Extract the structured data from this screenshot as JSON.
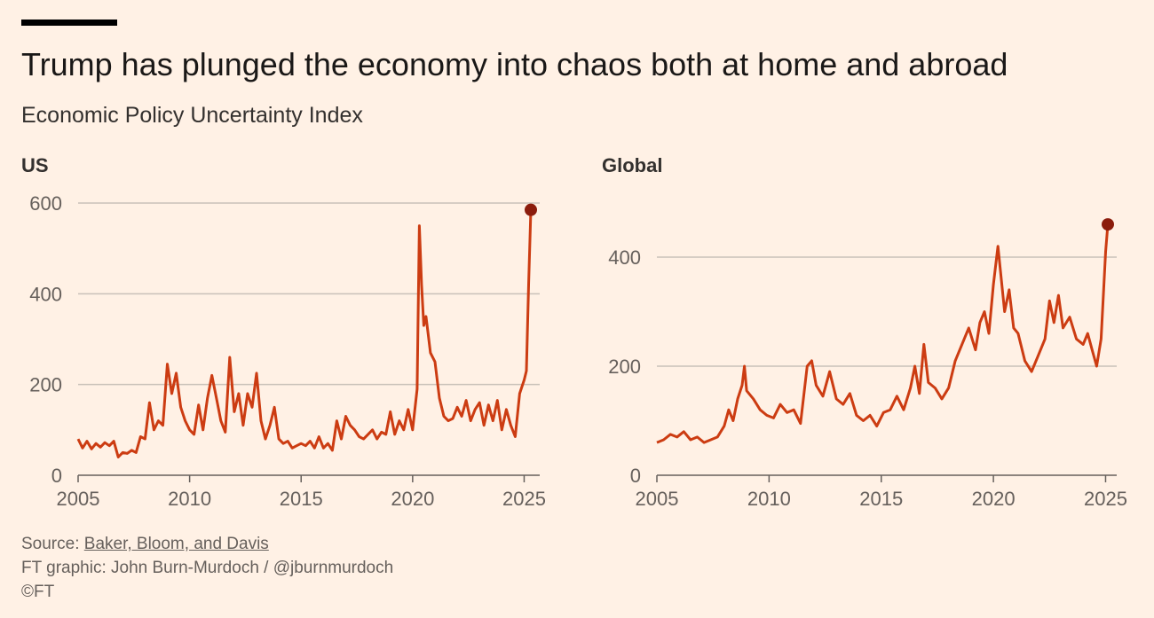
{
  "title": "Trump has plunged the economy into chaos both at home and abroad",
  "subtitle": "Economic Policy Uncertainty Index",
  "colors": {
    "background": "#fff1e5",
    "line": "#cc3c12",
    "marker": "#8b1c0c",
    "grid": "#c9c1b9"
  },
  "chart_data": [
    {
      "type": "line",
      "panel_title": "US",
      "x_range": [
        2005,
        2025.3
      ],
      "ylim": [
        0,
        600
      ],
      "y_ticks": [
        0,
        200,
        400,
        600
      ],
      "x_ticks": [
        2005,
        2010,
        2015,
        2020,
        2025
      ],
      "grid": true,
      "series": [
        {
          "points": [
            [
              2005.0,
              80
            ],
            [
              2005.2,
              60
            ],
            [
              2005.4,
              75
            ],
            [
              2005.6,
              58
            ],
            [
              2005.8,
              70
            ],
            [
              2006.0,
              62
            ],
            [
              2006.2,
              72
            ],
            [
              2006.4,
              65
            ],
            [
              2006.6,
              75
            ],
            [
              2006.8,
              40
            ],
            [
              2007.0,
              50
            ],
            [
              2007.2,
              48
            ],
            [
              2007.4,
              55
            ],
            [
              2007.6,
              50
            ],
            [
              2007.8,
              85
            ],
            [
              2008.0,
              80
            ],
            [
              2008.2,
              160
            ],
            [
              2008.4,
              100
            ],
            [
              2008.6,
              120
            ],
            [
              2008.8,
              110
            ],
            [
              2009.0,
              245
            ],
            [
              2009.2,
              180
            ],
            [
              2009.4,
              225
            ],
            [
              2009.6,
              150
            ],
            [
              2009.8,
              120
            ],
            [
              2010.0,
              100
            ],
            [
              2010.2,
              90
            ],
            [
              2010.4,
              155
            ],
            [
              2010.6,
              100
            ],
            [
              2010.8,
              170
            ],
            [
              2011.0,
              220
            ],
            [
              2011.2,
              170
            ],
            [
              2011.4,
              120
            ],
            [
              2011.6,
              95
            ],
            [
              2011.8,
              260
            ],
            [
              2012.0,
              140
            ],
            [
              2012.2,
              180
            ],
            [
              2012.4,
              110
            ],
            [
              2012.6,
              180
            ],
            [
              2012.8,
              150
            ],
            [
              2013.0,
              225
            ],
            [
              2013.2,
              120
            ],
            [
              2013.4,
              80
            ],
            [
              2013.6,
              110
            ],
            [
              2013.8,
              150
            ],
            [
              2014.0,
              80
            ],
            [
              2014.2,
              70
            ],
            [
              2014.4,
              75
            ],
            [
              2014.6,
              60
            ],
            [
              2014.8,
              65
            ],
            [
              2015.0,
              70
            ],
            [
              2015.2,
              65
            ],
            [
              2015.4,
              75
            ],
            [
              2015.6,
              60
            ],
            [
              2015.8,
              85
            ],
            [
              2016.0,
              60
            ],
            [
              2016.2,
              70
            ],
            [
              2016.4,
              55
            ],
            [
              2016.6,
              120
            ],
            [
              2016.8,
              80
            ],
            [
              2017.0,
              130
            ],
            [
              2017.2,
              110
            ],
            [
              2017.4,
              100
            ],
            [
              2017.6,
              85
            ],
            [
              2017.8,
              80
            ],
            [
              2018.0,
              90
            ],
            [
              2018.2,
              100
            ],
            [
              2018.4,
              80
            ],
            [
              2018.6,
              95
            ],
            [
              2018.8,
              90
            ],
            [
              2019.0,
              140
            ],
            [
              2019.2,
              90
            ],
            [
              2019.4,
              120
            ],
            [
              2019.6,
              100
            ],
            [
              2019.8,
              145
            ],
            [
              2020.0,
              100
            ],
            [
              2020.2,
              190
            ],
            [
              2020.3,
              550
            ],
            [
              2020.4,
              420
            ],
            [
              2020.5,
              330
            ],
            [
              2020.6,
              350
            ],
            [
              2020.8,
              270
            ],
            [
              2021.0,
              250
            ],
            [
              2021.2,
              170
            ],
            [
              2021.4,
              130
            ],
            [
              2021.6,
              120
            ],
            [
              2021.8,
              125
            ],
            [
              2022.0,
              150
            ],
            [
              2022.2,
              130
            ],
            [
              2022.4,
              165
            ],
            [
              2022.6,
              120
            ],
            [
              2022.8,
              145
            ],
            [
              2023.0,
              160
            ],
            [
              2023.2,
              110
            ],
            [
              2023.4,
              155
            ],
            [
              2023.6,
              120
            ],
            [
              2023.8,
              165
            ],
            [
              2024.0,
              100
            ],
            [
              2024.2,
              145
            ],
            [
              2024.4,
              110
            ],
            [
              2024.6,
              85
            ],
            [
              2024.8,
              180
            ],
            [
              2025.0,
              210
            ],
            [
              2025.1,
              230
            ],
            [
              2025.2,
              420
            ],
            [
              2025.3,
              585
            ]
          ]
        }
      ],
      "highlight_point": [
        2025.3,
        585
      ]
    },
    {
      "type": "line",
      "panel_title": "Global",
      "x_range": [
        2005,
        2025.1
      ],
      "ylim": [
        0,
        500
      ],
      "y_ticks": [
        0,
        200,
        400
      ],
      "x_ticks": [
        2005,
        2010,
        2015,
        2020,
        2025
      ],
      "grid": true,
      "series": [
        {
          "points": [
            [
              2005.0,
              60
            ],
            [
              2005.3,
              65
            ],
            [
              2005.6,
              75
            ],
            [
              2005.9,
              70
            ],
            [
              2006.2,
              80
            ],
            [
              2006.5,
              65
            ],
            [
              2006.8,
              70
            ],
            [
              2007.1,
              60
            ],
            [
              2007.4,
              65
            ],
            [
              2007.7,
              70
            ],
            [
              2008.0,
              90
            ],
            [
              2008.2,
              120
            ],
            [
              2008.4,
              100
            ],
            [
              2008.6,
              140
            ],
            [
              2008.8,
              165
            ],
            [
              2008.9,
              200
            ],
            [
              2009.0,
              155
            ],
            [
              2009.3,
              140
            ],
            [
              2009.6,
              120
            ],
            [
              2009.9,
              110
            ],
            [
              2010.2,
              105
            ],
            [
              2010.5,
              130
            ],
            [
              2010.8,
              115
            ],
            [
              2011.1,
              120
            ],
            [
              2011.4,
              95
            ],
            [
              2011.7,
              200
            ],
            [
              2011.9,
              210
            ],
            [
              2012.1,
              165
            ],
            [
              2012.4,
              145
            ],
            [
              2012.7,
              190
            ],
            [
              2013.0,
              140
            ],
            [
              2013.3,
              130
            ],
            [
              2013.6,
              150
            ],
            [
              2013.9,
              110
            ],
            [
              2014.2,
              100
            ],
            [
              2014.5,
              110
            ],
            [
              2014.8,
              90
            ],
            [
              2015.1,
              115
            ],
            [
              2015.4,
              120
            ],
            [
              2015.7,
              145
            ],
            [
              2016.0,
              120
            ],
            [
              2016.3,
              160
            ],
            [
              2016.5,
              200
            ],
            [
              2016.7,
              150
            ],
            [
              2016.9,
              240
            ],
            [
              2017.1,
              170
            ],
            [
              2017.4,
              160
            ],
            [
              2017.7,
              140
            ],
            [
              2018.0,
              160
            ],
            [
              2018.3,
              210
            ],
            [
              2018.6,
              240
            ],
            [
              2018.9,
              270
            ],
            [
              2019.2,
              230
            ],
            [
              2019.4,
              280
            ],
            [
              2019.6,
              300
            ],
            [
              2019.8,
              260
            ],
            [
              2020.0,
              350
            ],
            [
              2020.2,
              420
            ],
            [
              2020.3,
              380
            ],
            [
              2020.5,
              300
            ],
            [
              2020.7,
              340
            ],
            [
              2020.9,
              270
            ],
            [
              2021.1,
              260
            ],
            [
              2021.4,
              210
            ],
            [
              2021.7,
              190
            ],
            [
              2022.0,
              220
            ],
            [
              2022.3,
              250
            ],
            [
              2022.5,
              320
            ],
            [
              2022.7,
              280
            ],
            [
              2022.9,
              330
            ],
            [
              2023.1,
              270
            ],
            [
              2023.4,
              290
            ],
            [
              2023.7,
              250
            ],
            [
              2024.0,
              240
            ],
            [
              2024.2,
              260
            ],
            [
              2024.4,
              230
            ],
            [
              2024.6,
              200
            ],
            [
              2024.8,
              250
            ],
            [
              2025.0,
              410
            ],
            [
              2025.1,
              460
            ]
          ]
        }
      ],
      "highlight_point": [
        2025.1,
        460
      ]
    }
  ],
  "footer": {
    "source_prefix": "Source: ",
    "source_link": "Baker, Bloom, and Davis",
    "graphic_credit": "FT graphic: John Burn-Murdoch / @jburnmurdoch",
    "copyright": "©FT"
  }
}
